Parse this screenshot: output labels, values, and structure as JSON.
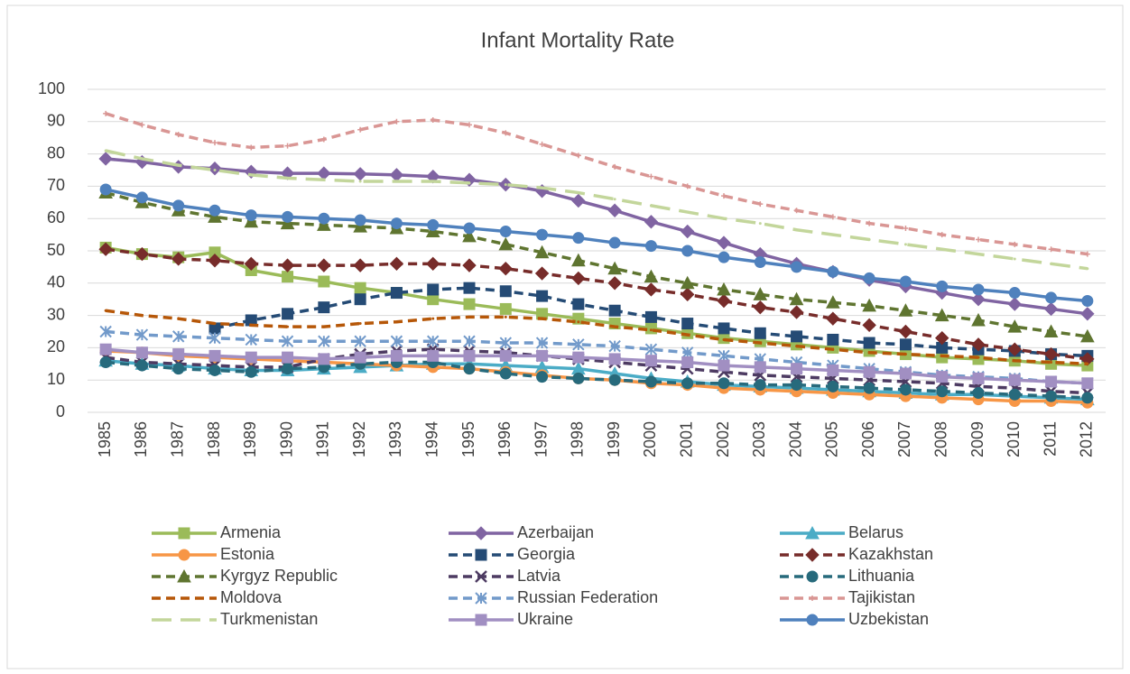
{
  "chart_data": {
    "type": "line",
    "title": "Infant Mortality Rate",
    "categories": [
      "1985",
      "1986",
      "1987",
      "1988",
      "1989",
      "1990",
      "1991",
      "1992",
      "1993",
      "1994",
      "1995",
      "1996",
      "1997",
      "1998",
      "1999",
      "2000",
      "2001",
      "2002",
      "2003",
      "2004",
      "2005",
      "2006",
      "2007",
      "2008",
      "2009",
      "2010",
      "2011",
      "2012"
    ],
    "ylim": [
      0,
      100
    ],
    "yticks": [
      0,
      10,
      20,
      30,
      40,
      50,
      60,
      70,
      80,
      90,
      100
    ],
    "grid": true,
    "legend": "bottom",
    "series": [
      {
        "name": "Armenia",
        "color": "#9bbb59",
        "dash": "solid",
        "marker": "square",
        "values": [
          51,
          49,
          48,
          49.5,
          44,
          42,
          40.5,
          38.5,
          37,
          35,
          33.5,
          32,
          30.5,
          29,
          27.5,
          26,
          24.5,
          23,
          22,
          21,
          20,
          19,
          18,
          17,
          16.5,
          16,
          15,
          14.5
        ]
      },
      {
        "name": "Azerbaijan",
        "color": "#8064a2",
        "dash": "solid",
        "marker": "diamond",
        "values": [
          78.5,
          77.5,
          76,
          75.5,
          74.5,
          74,
          74,
          73.8,
          73.5,
          73,
          72,
          70.5,
          68.5,
          65.5,
          62.5,
          59,
          56,
          52.5,
          49,
          46,
          43.5,
          41,
          39,
          37,
          35,
          33.5,
          32,
          30.5
        ]
      },
      {
        "name": "Belarus",
        "color": "#4bacc6",
        "dash": "solid",
        "marker": "triangle",
        "values": [
          16,
          15,
          14.5,
          13.5,
          13,
          13,
          13.5,
          14,
          14.5,
          15,
          15,
          14.5,
          14,
          13.5,
          12,
          10.5,
          9.5,
          8.5,
          8,
          7.5,
          7,
          6.5,
          6,
          5.5,
          5.5,
          5,
          4.5,
          4
        ]
      },
      {
        "name": "Estonia",
        "color": "#f79646",
        "dash": "solid",
        "marker": "circle",
        "values": [
          19,
          18.5,
          17.5,
          17,
          16.5,
          16,
          15.5,
          15,
          14.5,
          14,
          13.5,
          12.5,
          11.5,
          10.5,
          10,
          9,
          8.5,
          7.5,
          7,
          6.5,
          6,
          5.5,
          5,
          4.5,
          4,
          3.5,
          3.5,
          3
        ]
      },
      {
        "name": "Georgia",
        "color": "#254b75",
        "dash": "dash",
        "marker": "square",
        "values": [
          null,
          null,
          null,
          26,
          28.5,
          30.5,
          32.5,
          35,
          37,
          38,
          38.5,
          37.5,
          36,
          33.5,
          31.5,
          29.5,
          27.5,
          26,
          24.5,
          23.5,
          22.5,
          21.5,
          21,
          20,
          19.5,
          19,
          18,
          17.5
        ]
      },
      {
        "name": "Kazakhstan",
        "color": "#772c2a",
        "dash": "dash",
        "marker": "diamond",
        "values": [
          50.5,
          49,
          47.5,
          47,
          46,
          45.5,
          45.5,
          45.5,
          46,
          46,
          45.5,
          44.5,
          43,
          41.5,
          40,
          38,
          36.5,
          34.5,
          32.5,
          31,
          29,
          27,
          25,
          23,
          21,
          19.5,
          18,
          16.5
        ]
      },
      {
        "name": "Kyrgyz Republic",
        "color": "#5f7530",
        "dash": "dash",
        "marker": "triangle",
        "values": [
          68,
          65,
          62.5,
          60.5,
          59,
          58.5,
          58,
          57.5,
          57,
          56,
          54.5,
          52,
          49.5,
          47,
          44.5,
          42,
          40,
          38,
          36.5,
          35,
          34,
          33,
          31.5,
          30,
          28.5,
          26.5,
          25,
          23.5
        ]
      },
      {
        "name": "Latvia",
        "color": "#4d3b62",
        "dash": "dash",
        "marker": "x",
        "values": [
          17,
          15.5,
          15,
          14.5,
          14,
          14,
          16.5,
          18,
          19,
          19.5,
          19,
          18.5,
          17.5,
          16.5,
          15.5,
          14.5,
          13.5,
          12.5,
          11.5,
          11,
          10.5,
          10,
          9.5,
          9,
          8,
          7.5,
          6.5,
          6
        ]
      },
      {
        "name": "Lithuania",
        "color": "#276a7c",
        "dash": "dash",
        "marker": "circle",
        "values": [
          15.5,
          14.5,
          13.5,
          13,
          12.5,
          13.5,
          14,
          15,
          15.5,
          15.5,
          13.5,
          12,
          11,
          10.5,
          10,
          9.5,
          9,
          9,
          8.5,
          8.5,
          8,
          7.5,
          7,
          6.5,
          6,
          5.5,
          5,
          4.5
        ]
      },
      {
        "name": "Moldova",
        "color": "#b65708",
        "dash": "dash",
        "marker": "none",
        "values": [
          31.5,
          30,
          29,
          27.5,
          27,
          26.5,
          26.5,
          27.5,
          28,
          29,
          29.5,
          29.5,
          29,
          28,
          26.5,
          25.5,
          24,
          22.5,
          21.5,
          20.5,
          19.5,
          18.5,
          18,
          17.5,
          17,
          16,
          15.5,
          15
        ]
      },
      {
        "name": "Russian Federation",
        "color": "#729aca",
        "dash": "dash",
        "marker": "star",
        "values": [
          25,
          24,
          23.5,
          23,
          22.5,
          22,
          22,
          22,
          22,
          22,
          22,
          21.5,
          21.5,
          21,
          20.5,
          19.5,
          18.5,
          17.5,
          16.5,
          15.5,
          14.5,
          13.5,
          12.5,
          11.5,
          11,
          10.5,
          9.5,
          9
        ]
      },
      {
        "name": "Tajikistan",
        "color": "#d99694",
        "dash": "dash",
        "marker": "plus",
        "values": [
          92.5,
          89,
          86,
          83.5,
          82,
          82.5,
          84.5,
          87.5,
          90,
          90.5,
          89,
          86.5,
          83,
          79.5,
          76,
          73,
          70,
          67,
          64.5,
          62.5,
          60.5,
          58.5,
          57,
          55,
          53.5,
          52,
          50.5,
          49
        ]
      },
      {
        "name": "Turkmenistan",
        "color": "#c3d69b",
        "dash": "longdash",
        "marker": "none",
        "values": [
          81,
          78.5,
          76.5,
          75,
          73.5,
          72.5,
          72,
          71.5,
          71.5,
          71.5,
          71,
          70.5,
          69.5,
          68,
          66,
          64,
          62,
          60,
          58.5,
          56.5,
          55,
          53.5,
          52,
          50.5,
          49,
          47.5,
          46,
          44.5
        ]
      },
      {
        "name": "Ukraine",
        "color": "#a18fc2",
        "dash": "solid",
        "marker": "square",
        "values": [
          19.5,
          18.5,
          18,
          17.5,
          17,
          17,
          16.5,
          17,
          17.5,
          17.5,
          17.5,
          17.5,
          17.5,
          17,
          16.5,
          16,
          15.5,
          14.5,
          14,
          13.5,
          13,
          12.5,
          12,
          11,
          10.5,
          10,
          9.5,
          9
        ]
      },
      {
        "name": "Uzbekistan",
        "color": "#4f81bd",
        "dash": "solid",
        "marker": "circle",
        "values": [
          69,
          66.5,
          64,
          62.5,
          61,
          60.5,
          60,
          59.5,
          58.5,
          58,
          57,
          56,
          55,
          54,
          52.5,
          51.5,
          50,
          48,
          46.5,
          45,
          43.5,
          41.5,
          40.5,
          39,
          38,
          37,
          35.5,
          34.5
        ]
      }
    ]
  }
}
